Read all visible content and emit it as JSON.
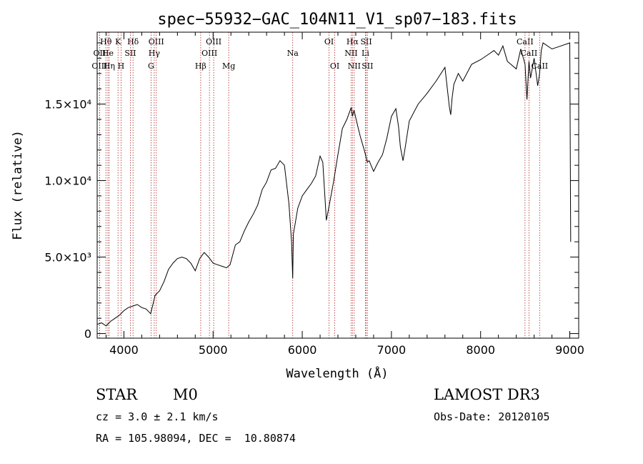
{
  "chart_data": {
    "type": "line",
    "title": "spec−55932−GAC_104N11_V1_sp07−183.fits",
    "xlabel": "Wavelength (Å)",
    "ylabel": "Flux (relative)",
    "xlim": [
      3700,
      9100
    ],
    "ylim": [
      -300,
      19700
    ],
    "x_ticks": [
      4000,
      5000,
      6000,
      7000,
      8000,
      9000
    ],
    "y_ticks": [
      {
        "value": 0,
        "label": "0"
      },
      {
        "value": 5000,
        "label": "5.0×10³"
      },
      {
        "value": 10000,
        "label": "1.0×10⁴"
      },
      {
        "value": 15000,
        "label": "1.5×10⁴"
      }
    ],
    "series": [
      {
        "name": "flux",
        "color": "#000000",
        "x": [
          3700,
          3750,
          3800,
          3850,
          3900,
          3950,
          4000,
          4050,
          4100,
          4150,
          4200,
          4250,
          4300,
          4350,
          4400,
          4450,
          4500,
          4550,
          4600,
          4650,
          4700,
          4750,
          4800,
          4850,
          4900,
          4950,
          5000,
          5050,
          5100,
          5150,
          5190,
          5250,
          5300,
          5350,
          5400,
          5450,
          5500,
          5550,
          5600,
          5650,
          5700,
          5750,
          5800,
          5850,
          5880,
          5893,
          5900,
          5930,
          5950,
          6000,
          6050,
          6100,
          6150,
          6200,
          6230,
          6270,
          6300,
          6350,
          6400,
          6450,
          6500,
          6550,
          6563,
          6580,
          6620,
          6650,
          6700,
          6730,
          6750,
          6800,
          6850,
          6900,
          6950,
          7000,
          7050,
          7080,
          7100,
          7130,
          7150,
          7200,
          7300,
          7400,
          7500,
          7600,
          7650,
          7665,
          7680,
          7700,
          7750,
          7800,
          7900,
          8000,
          8100,
          8150,
          8200,
          8250,
          8300,
          8400,
          8450,
          8498,
          8520,
          8542,
          8560,
          8600,
          8640,
          8662,
          8680,
          8700,
          8800,
          8900,
          9000,
          9010
        ],
        "y": [
          600,
          700,
          500,
          800,
          1000,
          1200,
          1500,
          1700,
          1800,
          1900,
          1700,
          1600,
          1300,
          2500,
          2800,
          3400,
          4200,
          4600,
          4900,
          5000,
          4900,
          4600,
          4100,
          4900,
          5300,
          5000,
          4600,
          4500,
          4400,
          4300,
          4500,
          5800,
          6000,
          6700,
          7300,
          7800,
          8400,
          9400,
          9900,
          10700,
          10800,
          11300,
          11000,
          8500,
          6000,
          3600,
          6500,
          7500,
          8200,
          9000,
          9400,
          9800,
          10300,
          11600,
          11200,
          7400,
          8300,
          9900,
          11700,
          13400,
          14000,
          14800,
          14200,
          14600,
          13600,
          12900,
          11900,
          11200,
          11300,
          10600,
          11200,
          11700,
          12800,
          14200,
          14700,
          13500,
          12200,
          11300,
          12000,
          13900,
          15000,
          15700,
          16500,
          17400,
          14800,
          14300,
          15400,
          16300,
          17000,
          16500,
          17600,
          17900,
          18300,
          18500,
          18200,
          18800,
          17800,
          17300,
          18600,
          17600,
          15300,
          17800,
          16700,
          18000,
          16200,
          17000,
          18500,
          19000,
          18600,
          18800,
          19000,
          6000
        ],
        "values": [
          600,
          700,
          500,
          800,
          1000,
          1200,
          1500,
          1700,
          1800,
          1900,
          1700,
          1600,
          1300,
          2500,
          2800,
          3400,
          4200,
          4600,
          4900,
          5000,
          4900,
          4600,
          4100,
          4900,
          5300,
          5000,
          4600,
          4500,
          4400,
          4300,
          4500,
          5800,
          6000,
          6700,
          7300,
          7800,
          8400,
          9400,
          9900,
          10700,
          10800,
          11300,
          11000,
          8500,
          6000,
          3600,
          6500,
          7500,
          8200,
          9000,
          9400,
          9800,
          10300,
          11600,
          11200,
          7400,
          8300,
          9900,
          11700,
          13400,
          14000,
          14800,
          14200,
          14600,
          13600,
          12900,
          11900,
          11200,
          11300,
          10600,
          11200,
          11700,
          12800,
          14200,
          14700,
          13500,
          12200,
          11300,
          12000,
          13900,
          15000,
          15700,
          16500,
          17400,
          14800,
          14300,
          15400,
          16300,
          17000,
          16500,
          17600,
          17900,
          18300,
          18500,
          18200,
          18800,
          17800,
          17300,
          18600,
          17600,
          15300,
          17800,
          16700,
          18000,
          16200,
          17000,
          18500,
          19000,
          18600,
          18800,
          19000,
          6000
        ]
      }
    ],
    "line_color": "#b22222",
    "lines": [
      {
        "label": "Hθ",
        "wavelength": 3798,
        "row": 1
      },
      {
        "label": "OII",
        "wavelength": 3727,
        "row": 2
      },
      {
        "label": "OIII",
        "wavelength": 3727,
        "row": 3
      },
      {
        "label": "He",
        "wavelength": 3820,
        "row": 2
      },
      {
        "label": "Hη",
        "wavelength": 3835,
        "row": 3
      },
      {
        "label": "K",
        "wavelength": 3934,
        "row": 1
      },
      {
        "label": "SII",
        "wavelength": 4072,
        "row": 2
      },
      {
        "label": "H",
        "wavelength": 3968,
        "row": 3
      },
      {
        "label": "Hδ",
        "wavelength": 4102,
        "row": 1
      },
      {
        "label": "OIII",
        "wavelength": 4363,
        "row": 1
      },
      {
        "label": "Hγ",
        "wavelength": 4340,
        "row": 2
      },
      {
        "label": "G",
        "wavelength": 4304,
        "row": 3
      },
      {
        "label": "Hβ",
        "wavelength": 4861,
        "row": 3
      },
      {
        "label": "OIII",
        "wavelength": 5007,
        "row": 1
      },
      {
        "label": "OIII",
        "wavelength": 4959,
        "row": 2
      },
      {
        "label": "Mg",
        "wavelength": 5175,
        "row": 3
      },
      {
        "label": "Na",
        "wavelength": 5893,
        "row": 2
      },
      {
        "label": "OI",
        "wavelength": 6300,
        "row": 1
      },
      {
        "label": "OI",
        "wavelength": 6364,
        "row": 3
      },
      {
        "label": "Hα",
        "wavelength": 6563,
        "row": 1
      },
      {
        "label": "SII",
        "wavelength": 6717,
        "row": 1
      },
      {
        "label": "NII",
        "wavelength": 6548,
        "row": 2
      },
      {
        "label": "Li",
        "wavelength": 6708,
        "row": 2
      },
      {
        "label": "NII",
        "wavelength": 6583,
        "row": 3
      },
      {
        "label": "SII",
        "wavelength": 6731,
        "row": 3
      },
      {
        "label": "CaII",
        "wavelength": 8498,
        "row": 1
      },
      {
        "label": "CaII",
        "wavelength": 8542,
        "row": 2
      },
      {
        "label": "CaII",
        "wavelength": 8662,
        "row": 3
      }
    ]
  },
  "info": {
    "class": "STAR",
    "subclass": "M0",
    "survey": "LAMOST DR3",
    "cz": "cz = 3.0 ± 2.1 km/s",
    "obs_date": "Obs-Date: 20120105",
    "radec": "RA = 105.98094, DEC =  10.80874"
  }
}
